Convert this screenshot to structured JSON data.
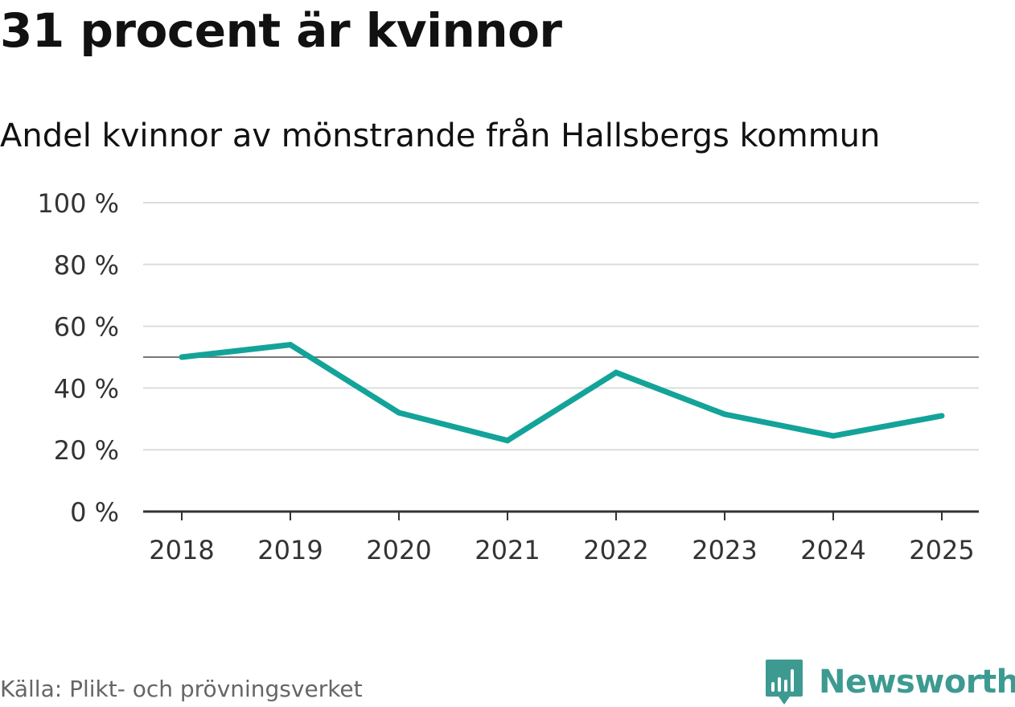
{
  "title": "31 procent är kvinnor",
  "subtitle": "Andel kvinnor av mönstrande från Hallsbergs kommun",
  "source": "Källa: Plikt- och prövningsverket",
  "brand": {
    "name": "Newsworthy",
    "icon": "newsworthy-logo-icon"
  },
  "colors": {
    "line": "#13a399",
    "grid": "#dddddd",
    "axis": "#333333",
    "reference": "#777777",
    "brand": "#3d9a91"
  },
  "chart_data": {
    "type": "line",
    "title": "31 procent är kvinnor",
    "subtitle": "Andel kvinnor av mönstrande från Hallsbergs kommun",
    "categories": [
      "2018",
      "2019",
      "2020",
      "2021",
      "2022",
      "2023",
      "2024",
      "2025"
    ],
    "series": [
      {
        "name": "Andel kvinnor",
        "values": [
          50,
          54,
          32,
          23,
          45,
          31.5,
          24.5,
          31
        ]
      }
    ],
    "reference_line": 50,
    "ylim": [
      0,
      100
    ],
    "yticks": [
      0,
      20,
      40,
      60,
      80,
      100
    ],
    "ytick_labels": [
      "0 %",
      "20 %",
      "40 %",
      "60 %",
      "80 %",
      "100 %"
    ],
    "xlabel": "",
    "ylabel": "",
    "grid": true
  }
}
